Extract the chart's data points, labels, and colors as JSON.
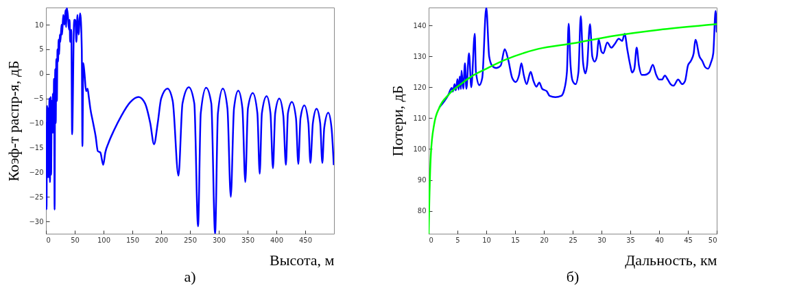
{
  "chart_data": [
    {
      "type": "line",
      "title": "а)",
      "xlabel": "Высота, м",
      "ylabel": "Коэф-т распр-я, дБ",
      "xlim": [
        0,
        500
      ],
      "ylim": [
        -32.5,
        13.5
      ],
      "xticks": [
        0,
        50,
        100,
        150,
        200,
        250,
        300,
        350,
        400,
        450
      ],
      "yticks": [
        -30,
        -25,
        -20,
        -15,
        -10,
        -5,
        0,
        5,
        10
      ],
      "series": [
        {
          "color": "#0000ff",
          "x": [
            0,
            1,
            2,
            3,
            4,
            5,
            6,
            7,
            8,
            9,
            10,
            11,
            12,
            13,
            14,
            15,
            16,
            17,
            18,
            19,
            20,
            21,
            22,
            23,
            24,
            25,
            27,
            28,
            30,
            32,
            34,
            35,
            36,
            38,
            40,
            41,
            42,
            44,
            45.4,
            49,
            51,
            52.8,
            54.7,
            56.6,
            59.5,
            62.2,
            63.3,
            64.8,
            67,
            69.6,
            72.2,
            74.4,
            77,
            81.9,
            86.3,
            90,
            94.5,
            99.4,
            103,
            108.7,
            118,
            131,
            146,
            160.8,
            172,
            181,
            187.6,
            194,
            200,
            211,
            220,
            230,
            237,
            248,
            257.5,
            264,
            268.7,
            278,
            287,
            293.6,
            298.5,
            307,
            315,
            320.8,
            326.4,
            333.8,
            341,
            346,
            350.6,
            359,
            367,
            371,
            374.8,
            383,
            389.7,
            394,
            397.9,
            405,
            412,
            416.5,
            420,
            426.9,
            434,
            438,
            441.8,
            448.5,
            455.5,
            459,
            463.3,
            469.7,
            476,
            479.7,
            483,
            490,
            495.7,
            499.5
          ],
          "values": [
            -10,
            -27.5,
            -6.5,
            -21,
            -7,
            -21,
            -5,
            -22,
            -4.7,
            -20.5,
            -5.5,
            -12,
            -4,
            -12,
            -1,
            -27.6,
            1,
            -10,
            3,
            -5.5,
            5,
            2.5,
            7,
            4,
            8,
            6.5,
            10,
            8,
            12,
            10,
            13,
            9.5,
            13.5,
            12,
            9,
            11,
            6.5,
            9,
            -12.3,
            11,
            11,
            6.5,
            12,
            8,
            12.3,
            5,
            -14.7,
            2.2,
            0,
            -3.5,
            -3,
            -4.7,
            -7,
            -10,
            -12.7,
            -15.7,
            -16,
            -18.5,
            -16,
            -14,
            -11.5,
            -8.5,
            -5.8,
            -4.7,
            -6,
            -10,
            -14.3,
            -10,
            -5,
            -3,
            -5.5,
            -20.7,
            -6,
            -2.7,
            -6,
            -31,
            -8,
            -2.8,
            -6,
            -32.5,
            -8,
            -3,
            -7,
            -25,
            -7,
            -3.4,
            -7,
            -22,
            -7,
            -3.9,
            -8,
            -20.3,
            -8,
            -4.5,
            -8,
            -19.2,
            -8,
            -5,
            -8.5,
            -18.5,
            -8,
            -5.7,
            -9,
            -18.3,
            -9,
            -6.4,
            -10,
            -18.1,
            -10,
            -7.1,
            -10,
            -18.1,
            -11,
            -7.9,
            -11,
            -18.4
          ]
        }
      ]
    },
    {
      "type": "line",
      "title": "б)",
      "xlabel": "Дальность, км",
      "ylabel": "Потери, дБ",
      "xlim": [
        0,
        50
      ],
      "ylim": [
        72.6,
        145.8
      ],
      "xticks": [
        0,
        5,
        10,
        15,
        20,
        25,
        30,
        35,
        40,
        45,
        50
      ],
      "yticks": [
        80,
        90,
        100,
        110,
        120,
        130,
        140
      ],
      "series": [
        {
          "color": "#0000ff",
          "x": [
            1.9,
            3.4,
            4.0,
            4.2,
            4.5,
            4.7,
            5.0,
            5.2,
            5.4,
            5.6,
            5.7,
            6.0,
            6.3,
            6.55,
            7.0,
            7.4,
            8.0,
            8.2,
            8.8,
            9.3,
            10.0,
            10.5,
            11,
            11.7,
            12.5,
            13.2,
            13.8,
            14.5,
            15.1,
            15.7,
            16.1,
            16.5,
            17,
            17.7,
            18.2,
            18.7,
            19.2,
            19.7,
            20.5,
            21,
            22,
            23,
            23.5,
            24,
            24.3,
            24.6,
            25,
            25.5,
            26,
            26.4,
            26.8,
            27.2,
            27.5,
            28,
            28.4,
            28.8,
            29.2,
            29.5,
            30,
            30.3,
            31,
            31.7,
            32.3,
            33,
            33.6,
            34,
            34.5,
            35,
            35.3,
            35.7,
            36.1,
            36.5,
            37,
            37.5,
            38.3,
            38.9,
            39.5,
            40,
            40.5,
            41,
            41.5,
            42,
            42.5,
            43.3,
            44,
            44.5,
            45,
            45.5,
            46,
            46.3,
            47,
            47.5,
            48,
            48.5,
            49,
            49.4,
            49.8,
            50
          ],
          "values": [
            113.6,
            117.5,
            119.8,
            118.6,
            121,
            119,
            122.6,
            119.2,
            123.5,
            119.4,
            125.4,
            119.5,
            127.8,
            119.5,
            131,
            120,
            137.3,
            125,
            120.7,
            123,
            145.8,
            130,
            127,
            126.2,
            127,
            132.3,
            129,
            123,
            121.7,
            124,
            127.8,
            124,
            121,
            125,
            122,
            120.2,
            121.5,
            119.5,
            118.7,
            117.2,
            116.8,
            117.2,
            119,
            125,
            140.6,
            128,
            122,
            121,
            125,
            143,
            128,
            124.5,
            127,
            140.4,
            130,
            128.3,
            130,
            135.5,
            131.5,
            131,
            134.5,
            132.8,
            134,
            135.7,
            135,
            137.3,
            132,
            127,
            124.8,
            126,
            132.8,
            127,
            124,
            124,
            124.8,
            127.3,
            124,
            122.5,
            122.5,
            123.8,
            122.5,
            121,
            120.5,
            122.5,
            121,
            122,
            127,
            128.5,
            131,
            135.4,
            130,
            128.5,
            126.5,
            126,
            128,
            131,
            144.7,
            138
          ]
        },
        {
          "color": "#00ff00",
          "x": [
            0,
            0.08,
            0.38,
            0.95,
            1.9,
            3.4,
            5.7,
            7.6,
            10,
            13.3,
            19,
            25,
            32.4,
            40,
            50
          ],
          "values": [
            72.6,
            80.2,
            98.3,
            108,
            113.6,
            117.5,
            121.2,
            123.7,
            126,
            128.9,
            132.4,
            134.2,
            136.7,
            138.6,
            140.4
          ]
        }
      ]
    }
  ]
}
